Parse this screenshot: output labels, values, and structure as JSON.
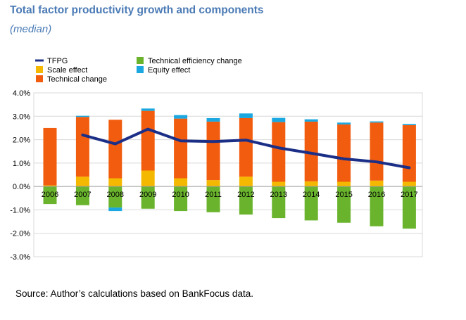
{
  "header": {
    "title": "Total factor productivity growth and components",
    "subtitle": "(median)"
  },
  "footer": {
    "source": "Source: Author’s calculations based on BankFocus data."
  },
  "chart_data": {
    "type": "bar",
    "stacked": true,
    "title": "Total factor productivity growth and components",
    "subtitle": "(median)",
    "xlabel": "",
    "ylabel": "",
    "categories": [
      "2006",
      "2007",
      "2008",
      "2009",
      "2010",
      "2011",
      "2012",
      "2013",
      "2014",
      "2015",
      "2016",
      "2017"
    ],
    "ylim": [
      -3.0,
      4.0
    ],
    "yticks": [
      "-3.0%",
      "-2.0%",
      "-1.0%",
      "0.0%",
      "1.0%",
      "2.0%",
      "3.0%",
      "4.0%"
    ],
    "grid": true,
    "legend_position": "top-left",
    "series": [
      {
        "name": "Technical efficiency change",
        "kind": "bar",
        "color": "#6ab42d",
        "values": [
          -0.75,
          -0.8,
          -0.9,
          -0.95,
          -1.05,
          -1.1,
          -1.2,
          -1.35,
          -1.45,
          -1.55,
          -1.7,
          -1.8
        ]
      },
      {
        "name": "Scale effect",
        "kind": "bar",
        "color": "#f5b800",
        "values": [
          0.05,
          0.42,
          0.35,
          0.68,
          0.35,
          0.27,
          0.42,
          0.2,
          0.22,
          0.2,
          0.25,
          0.2
        ]
      },
      {
        "name": "Technical change",
        "kind": "bar",
        "color": "#f25c0f",
        "values": [
          2.45,
          2.55,
          2.5,
          2.55,
          2.55,
          2.5,
          2.5,
          2.55,
          2.55,
          2.45,
          2.48,
          2.42
        ]
      },
      {
        "name": "Equity effect",
        "kind": "bar",
        "color": "#1ba8e0",
        "values": [
          0.0,
          0.05,
          -0.15,
          0.1,
          0.15,
          0.15,
          0.2,
          0.18,
          0.1,
          0.08,
          0.05,
          0.05
        ]
      },
      {
        "name": "TFPG",
        "kind": "line",
        "color": "#1c2f87",
        "values": [
          null,
          2.2,
          1.82,
          2.45,
          1.95,
          1.92,
          1.98,
          1.65,
          1.42,
          1.18,
          1.05,
          0.8
        ]
      }
    ]
  }
}
